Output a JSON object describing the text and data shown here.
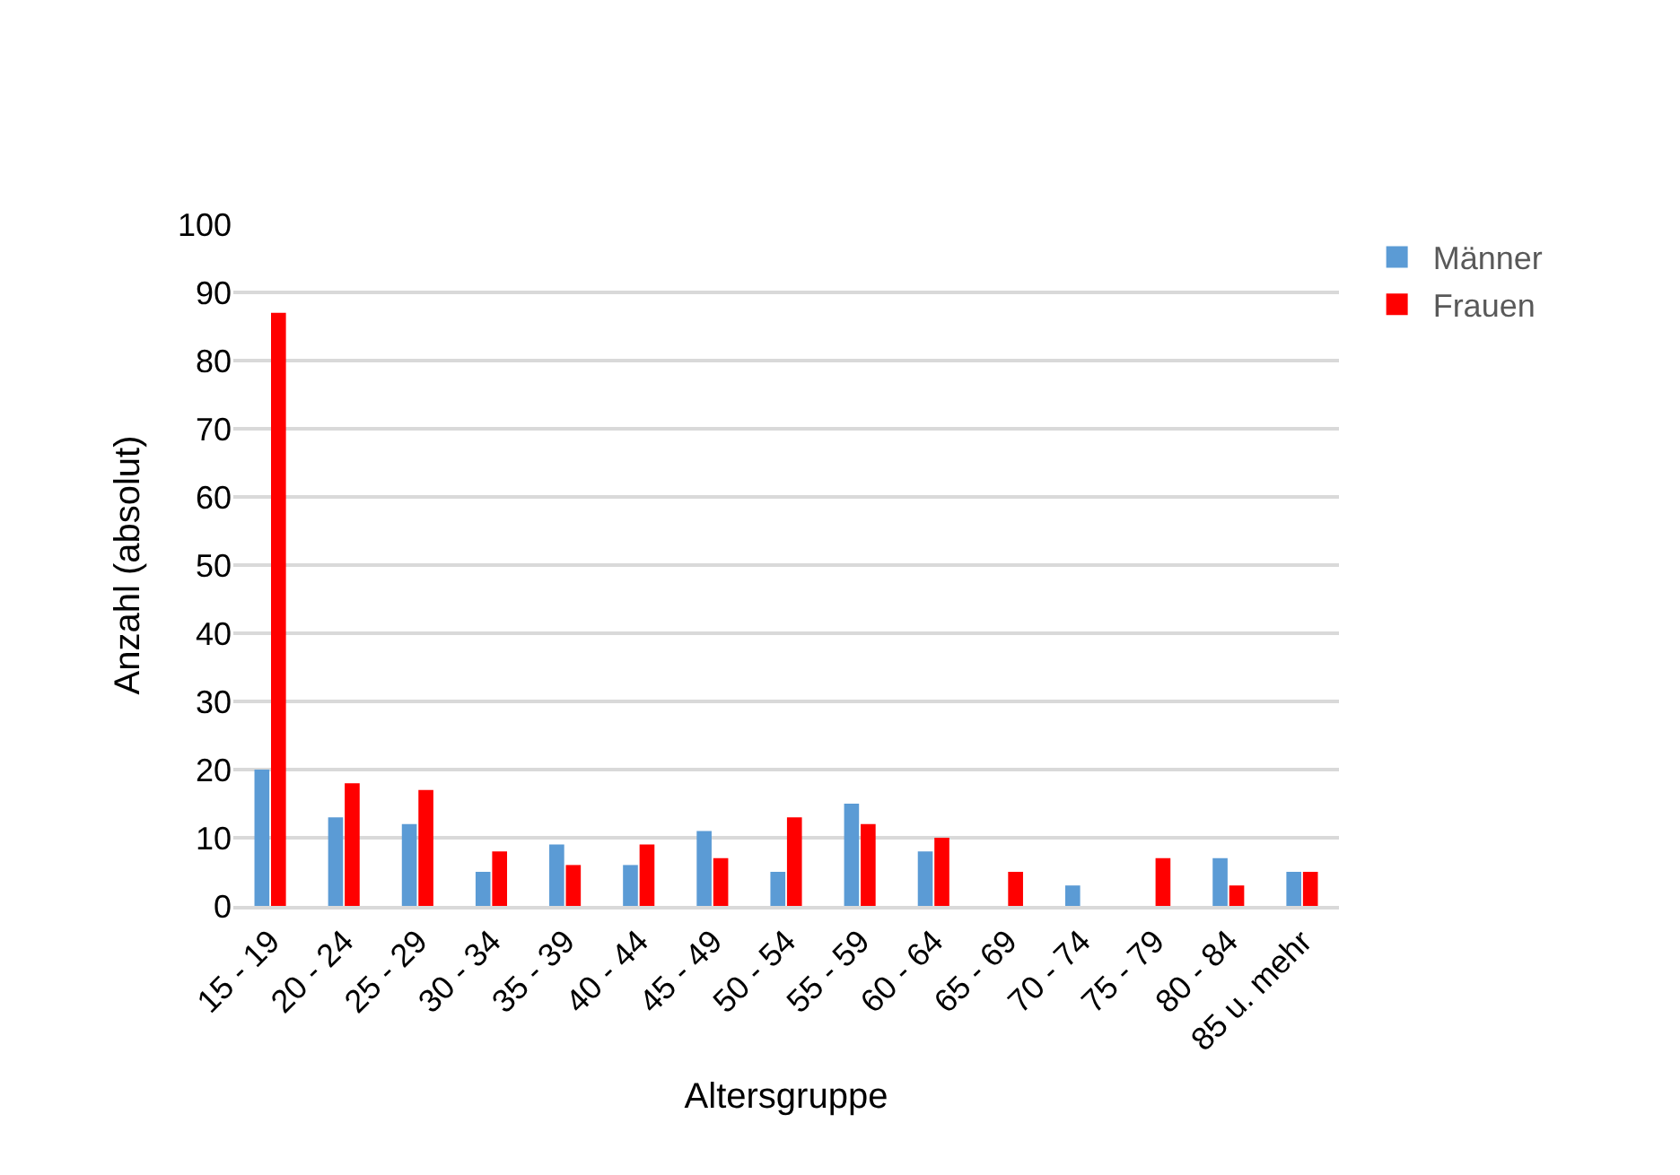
{
  "chart_data": {
    "type": "bar",
    "xlabel": "Altersgruppe",
    "ylabel": "Anzahl (absolut)",
    "categories": [
      "15 - 19",
      "20 - 24",
      "25 - 29",
      "30 - 34",
      "35 - 39",
      "40 - 44",
      "45 - 49",
      "50 - 54",
      "55 - 59",
      "60 - 64",
      "65 - 69",
      "70 - 74",
      "75 - 79",
      "80 - 84",
      "85 u. mehr"
    ],
    "series": [
      {
        "name": "Männer",
        "color": "#5b9bd5",
        "values": [
          20,
          13,
          12,
          5,
          9,
          6,
          11,
          5,
          15,
          8,
          0,
          3,
          0,
          7,
          5
        ]
      },
      {
        "name": "Frauen",
        "color": "#ff0000",
        "values": [
          87,
          18,
          17,
          8,
          6,
          9,
          7,
          13,
          12,
          10,
          5,
          0,
          7,
          3,
          5
        ]
      }
    ],
    "ylim": [
      0,
      100
    ],
    "yticks": [
      0,
      10,
      20,
      30,
      40,
      50,
      60,
      70,
      80,
      90,
      100
    ],
    "grid": "y",
    "legend": "top right"
  }
}
